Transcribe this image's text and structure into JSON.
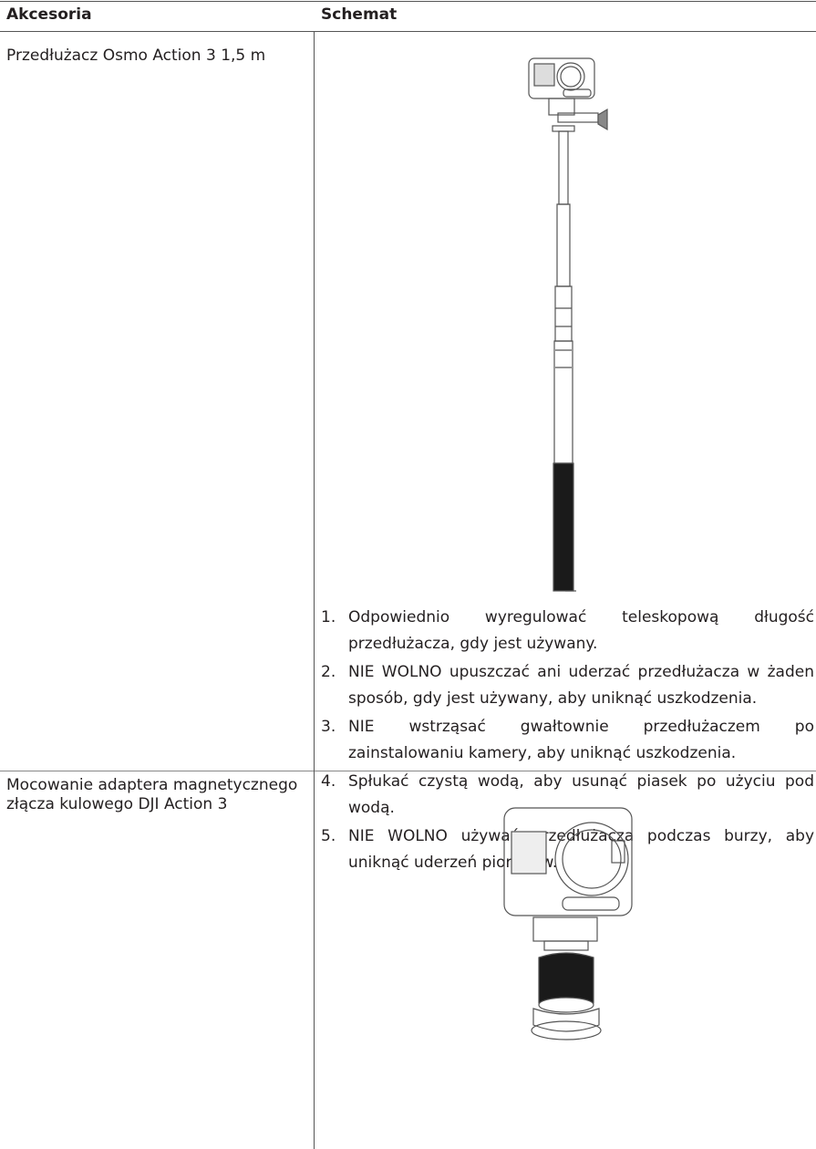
{
  "table": {
    "header": [
      "Akcesoria",
      "Schemat"
    ],
    "rows": [
      {
        "accessory": "Przedłużacz Osmo Action 3 1,5 m",
        "notes": [
          {
            "number": "1.",
            "text": "Odpowiednio wyregulować teleskopową długość przedłużacza, gdy jest używany."
          },
          {
            "number": "2.",
            "text": "NIE WOLNO upuszczać ani uderzać przedłużacza w żaden sposób, gdy jest używany, aby uniknąć uszkodzenia."
          },
          {
            "number": "3.",
            "text": "NIE wstrząsać gwałtownie przedłużaczem po zainstalowaniu kamery, aby uniknąć uszkodzenia."
          },
          {
            "number": "4.",
            "text": "Spłukać czystą wodą, aby usunąć piasek po użyciu pod wodą."
          },
          {
            "number": "5.",
            "text": "NIE WOLNO używać przedłużacza podczas burzy, aby uniknąć uderzeń piorunów."
          }
        ]
      },
      {
        "accessory": "Mocowanie adaptera magnetycznego złącza kulowego DJI Action 3"
      }
    ]
  }
}
